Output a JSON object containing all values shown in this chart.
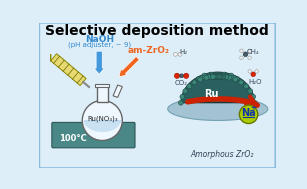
{
  "title": "Selective deposition method",
  "title_fontsize": 10,
  "title_fontweight": "bold",
  "bg_color": "#ddeef8",
  "border_color": "#88bbdd",
  "naoh_text": "NaOH",
  "naoh_sub": "(pH adjuster, ~ 9)",
  "naoh_color": "#3388cc",
  "am_zro2_text": "am-ZrO₂",
  "am_zro2_color": "#ee6622",
  "ru_no3_text": "Ru(NO₃)₃",
  "temp_text": "100°C",
  "amorphous_text": "Amorphous ZrO₂",
  "ru_text": "Ru",
  "na_text": "Na",
  "co2_text": "CO₂",
  "h2_text": "H₂",
  "ch4_text": "CH₄",
  "h2o_text": "H₂O",
  "teal_dark": "#2a6060",
  "teal_nanoparticle": "#3a8878",
  "teal_np_edge": "#1a3838",
  "yellow_green_na": "#aacc00",
  "red_atom": "#dd2200",
  "gray_atom": "#4a5a66",
  "flask_color": "#f0f8ff",
  "flask_edge": "#666666",
  "hotplate_color": "#4a8888",
  "hotplate_edge": "#2a5555",
  "arrow_blue_color": "#4499dd",
  "arrow_orange_color": "#ee6622",
  "support_blue": "#99bbcc",
  "support_red": "#cc2200",
  "na_border": "#667700"
}
